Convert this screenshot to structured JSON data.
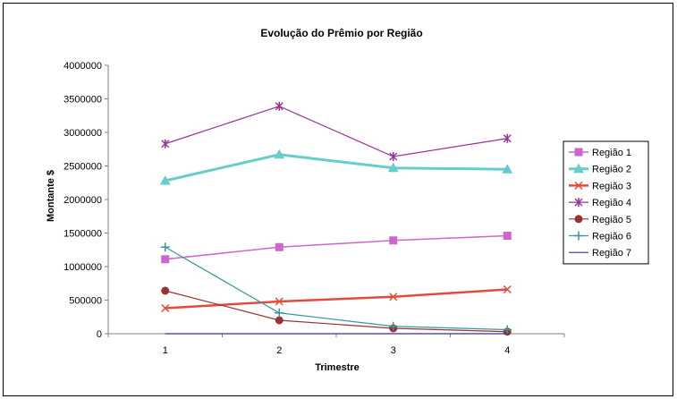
{
  "chart_data": {
    "type": "line",
    "title": "Evolução do Prêmio por Região",
    "xlabel": "Trimestre",
    "ylabel": "Montante $",
    "categories": [
      "1",
      "2",
      "3",
      "4"
    ],
    "ylim": [
      0,
      4000000
    ],
    "yticks": [
      0,
      500000,
      1000000,
      1500000,
      2000000,
      2500000,
      3000000,
      3500000,
      4000000
    ],
    "grid": false,
    "legend": "right",
    "series": [
      {
        "name": "Região 1",
        "values": [
          1110000,
          1290000,
          1390000,
          1460000
        ],
        "color": "#CC66CC",
        "marker": "square",
        "width": 1.5
      },
      {
        "name": "Região 2",
        "values": [
          2280000,
          2670000,
          2470000,
          2450000
        ],
        "color": "#66CCCC",
        "marker": "triangle",
        "width": 3
      },
      {
        "name": "Região 3",
        "values": [
          380000,
          480000,
          550000,
          660000
        ],
        "color": "#E24B3C",
        "marker": "x",
        "width": 2.5
      },
      {
        "name": "Região 4",
        "values": [
          2830000,
          3390000,
          2640000,
          2910000
        ],
        "color": "#993399",
        "marker": "star",
        "width": 1.2
      },
      {
        "name": "Região 5",
        "values": [
          640000,
          200000,
          80000,
          30000
        ],
        "color": "#993333",
        "marker": "circle",
        "width": 1.2
      },
      {
        "name": "Região 6",
        "values": [
          1290000,
          310000,
          110000,
          60000
        ],
        "color": "#339999",
        "marker": "plus",
        "width": 1.2
      },
      {
        "name": "Região 7",
        "values": [
          0,
          0,
          0,
          0
        ],
        "color": "#333399",
        "marker": "none",
        "width": 1.2
      }
    ]
  }
}
